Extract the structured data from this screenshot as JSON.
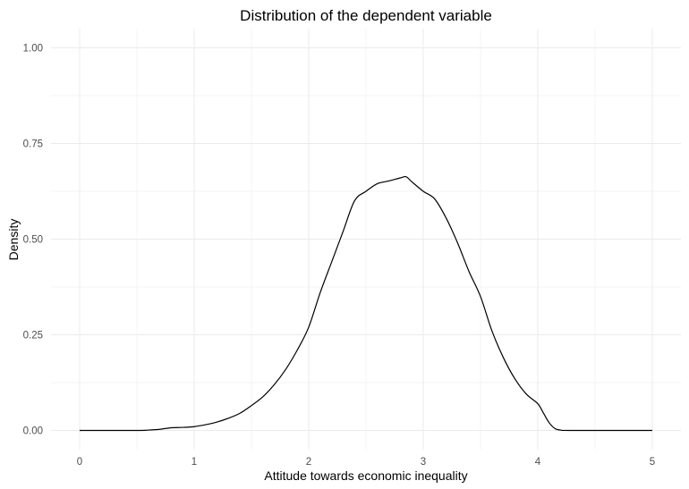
{
  "chart_data": {
    "type": "line",
    "title": "Distribution of the dependent variable",
    "xlabel": "Attitude towards economic inequality",
    "ylabel": "Density",
    "xlim": [
      0,
      5
    ],
    "ylim": [
      0,
      1
    ],
    "x_ticks": [
      0,
      1,
      2,
      3,
      4,
      5
    ],
    "x_tick_labels": [
      "0",
      "1",
      "2",
      "3",
      "4",
      "5"
    ],
    "y_ticks": [
      0,
      0.25,
      0.5,
      0.75,
      1.0
    ],
    "y_tick_labels": [
      "0.00",
      "0.25",
      "0.50",
      "0.75",
      "1.00"
    ],
    "grid": true,
    "legend": "none",
    "line_color": "#000000",
    "series": [
      {
        "x": [
          0,
          0.5,
          0.6,
          0.7,
          0.8,
          0.9,
          1.0,
          1.1,
          1.2,
          1.3,
          1.4,
          1.5,
          1.6,
          1.7,
          1.8,
          1.9,
          2.0,
          2.1,
          2.2,
          2.3,
          2.4,
          2.5,
          2.6,
          2.7,
          2.8,
          2.85,
          2.9,
          3.0,
          3.1,
          3.2,
          3.3,
          3.4,
          3.5,
          3.6,
          3.7,
          3.8,
          3.9,
          4.0,
          4.05,
          4.1,
          4.15,
          4.2,
          4.3,
          5.0
        ],
        "y": [
          0,
          0,
          0.001,
          0.003,
          0.007,
          0.008,
          0.01,
          0.015,
          0.022,
          0.032,
          0.045,
          0.065,
          0.088,
          0.12,
          0.16,
          0.21,
          0.27,
          0.36,
          0.44,
          0.52,
          0.6,
          0.625,
          0.645,
          0.652,
          0.66,
          0.663,
          0.65,
          0.625,
          0.605,
          0.555,
          0.49,
          0.415,
          0.35,
          0.26,
          0.19,
          0.135,
          0.095,
          0.07,
          0.045,
          0.02,
          0.005,
          0.001,
          0,
          0
        ]
      }
    ]
  }
}
